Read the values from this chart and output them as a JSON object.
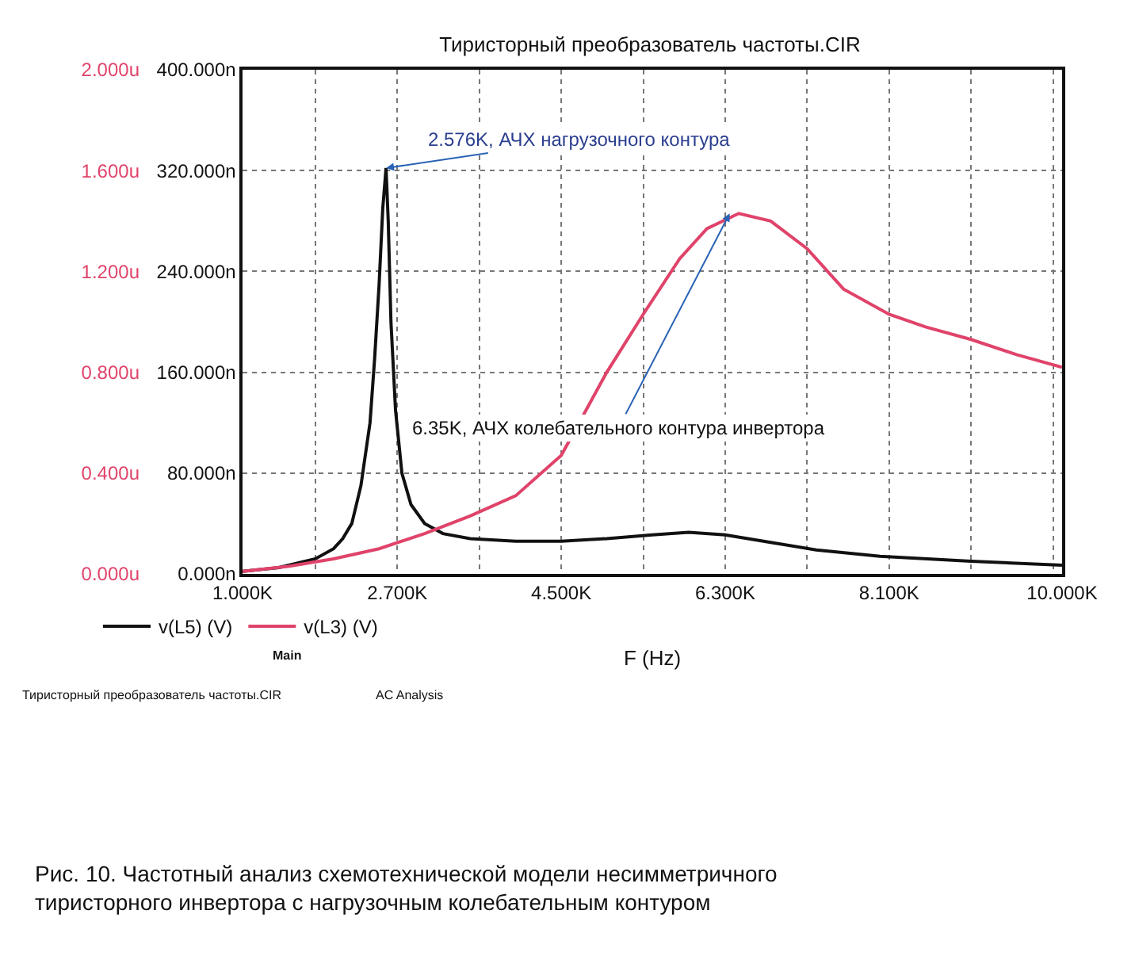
{
  "chart_data": {
    "type": "line",
    "title": "Тиристорный преобразователь частоты.CIR",
    "xlabel": "F (Hz)",
    "x": [
      1000,
      1400,
      1800,
      2000,
      2100,
      2200,
      2300,
      2400,
      2450,
      2500,
      2540,
      2576,
      2600,
      2630,
      2680,
      2750,
      2850,
      3000,
      3200,
      3500,
      4000,
      4500,
      5000,
      5500,
      5900,
      6300,
      6800,
      7300,
      8000,
      9000,
      10000
    ],
    "series": [
      {
        "name": "v(L5) (V)",
        "color": "#111111",
        "values": [
          2,
          5,
          12,
          20,
          28,
          40,
          70,
          120,
          170,
          230,
          290,
          322,
          280,
          200,
          130,
          80,
          55,
          40,
          32,
          28,
          26,
          26,
          28,
          31,
          33,
          31,
          25,
          19,
          14,
          10,
          7
        ]
      },
      {
        "name": "v(L3) (V)",
        "color": "#e0436a",
        "axis": "y2",
        "x": [
          1000,
          1500,
          2000,
          2500,
          3000,
          3500,
          4000,
          4500,
          5000,
          5400,
          5800,
          6100,
          6450,
          6800,
          7200,
          7600,
          8100,
          8500,
          9000,
          9500,
          10000
        ],
        "values": [
          0.01,
          0.03,
          0.06,
          0.1,
          0.16,
          0.23,
          0.31,
          0.47,
          0.8,
          1.03,
          1.25,
          1.37,
          1.43,
          1.4,
          1.29,
          1.13,
          1.03,
          0.98,
          0.93,
          0.87,
          0.82
        ]
      }
    ],
    "xlim": [
      1000,
      10000
    ],
    "xticks": [
      {
        "value": 1000,
        "label": "1.000K"
      },
      {
        "value": 1800,
        "label": null
      },
      {
        "value": 2700,
        "label": "2.700K"
      },
      {
        "value": 3600,
        "label": null
      },
      {
        "value": 4500,
        "label": "4.500K"
      },
      {
        "value": 5400,
        "label": null
      },
      {
        "value": 6300,
        "label": "6.300K"
      },
      {
        "value": 7200,
        "label": null
      },
      {
        "value": 8100,
        "label": "8.100K"
      },
      {
        "value": 9000,
        "label": null
      },
      {
        "value": 9900,
        "label": null
      },
      {
        "value": 10000,
        "label": "10.000K"
      }
    ],
    "ylim": [
      0,
      400
    ],
    "yticks": [
      {
        "value": 0,
        "label": "0.000n"
      },
      {
        "value": 80,
        "label": "80.000n"
      },
      {
        "value": 160,
        "label": "160.000n"
      },
      {
        "value": 240,
        "label": "240.000n"
      },
      {
        "value": 320,
        "label": "320.000n"
      },
      {
        "value": 400,
        "label": "400.000n"
      }
    ],
    "y2lim": [
      0,
      2
    ],
    "y2ticks": [
      {
        "value": 0,
        "label": "0.000u"
      },
      {
        "value": 0.4,
        "label": "0.400u"
      },
      {
        "value": 0.8,
        "label": "0.800u"
      },
      {
        "value": 1.2,
        "label": "1.200u"
      },
      {
        "value": 1.6,
        "label": "1.600u"
      },
      {
        "value": 2,
        "label": "2.000u"
      }
    ],
    "grid": true,
    "legend": "bottom",
    "marker": "none",
    "line_style": "solid",
    "annotations": [
      {
        "text": "2.576K, АЧХ нагрузочного контура",
        "x": 2576,
        "y": 322
      },
      {
        "text": "6.35K, АЧХ колебательного контура инвертора",
        "x": 6350,
        "y": 286
      },
      "Main",
      "Тиристорный преобразователь частоты.CIR",
      "AC Analysis",
      "Рис. 10. Частотный анализ схемотехнической модели несимметричного тиристорного инвертора с нагрузочным колебательным контуром"
    ]
  }
}
